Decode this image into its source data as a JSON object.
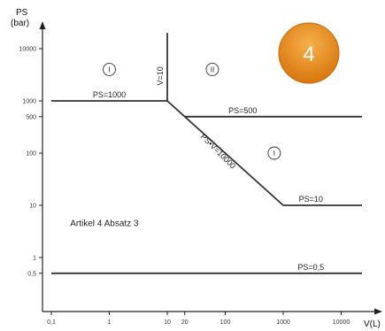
{
  "chart_data": {
    "type": "line",
    "x_scale": "log",
    "y_scale": "log",
    "xlabel": "V(L)",
    "ylabel": "PS",
    "ylabel_unit": "(bar)",
    "x_ticks": [
      {
        "value": 0.1,
        "label": "0,1"
      },
      {
        "value": 1,
        "label": "1"
      },
      {
        "value": 10,
        "label": "10"
      },
      {
        "value": 20,
        "label": "20"
      },
      {
        "value": 100,
        "label": "100"
      },
      {
        "value": 1000,
        "label": "1000"
      },
      {
        "value": 10000,
        "label": "10000"
      }
    ],
    "y_ticks": [
      {
        "value": 0.5,
        "label": "0,5"
      },
      {
        "value": 1,
        "label": "1"
      },
      {
        "value": 10,
        "label": "10"
      },
      {
        "value": 100,
        "label": "100"
      },
      {
        "value": 500,
        "label": "500"
      },
      {
        "value": 1000,
        "label": "1000"
      },
      {
        "value": 10000,
        "label": "10000"
      }
    ],
    "series": [
      {
        "name": "PS=1000",
        "points": [
          [
            0.1,
            1000
          ],
          [
            10,
            1000
          ]
        ]
      },
      {
        "name": "V=10",
        "points": [
          [
            10,
            1000
          ],
          [
            10,
            20000
          ]
        ]
      },
      {
        "name": "PS·V=10000",
        "points": [
          [
            10,
            1000
          ],
          [
            1000,
            10
          ]
        ]
      },
      {
        "name": "PS=500",
        "points": [
          [
            20,
            500
          ],
          [
            50000,
            500
          ]
        ]
      },
      {
        "name": "PS=10",
        "points": [
          [
            1000,
            10
          ],
          [
            50000,
            10
          ]
        ]
      },
      {
        "name": "PS=0,5",
        "points": [
          [
            0.1,
            0.5
          ],
          [
            50000,
            0.5
          ]
        ]
      }
    ],
    "annotations": [
      {
        "text": "PS=1000",
        "x": 1,
        "y": 1000
      },
      {
        "text": "V=10",
        "x": 10,
        "y": 3000
      },
      {
        "text": "PS=500",
        "x": 200,
        "y": 500
      },
      {
        "text": "PS•V=10000",
        "x": 70,
        "y": 100
      },
      {
        "text": "PS=10",
        "x": 3000,
        "y": 10
      },
      {
        "text": "PS=0,5",
        "x": 3000,
        "y": 0.5
      },
      {
        "text": "Artikel 4 Absatz 3",
        "x": 0.3,
        "y": 4
      }
    ],
    "regions": [
      {
        "label": "I",
        "x": 1,
        "y": 4000
      },
      {
        "label": "II",
        "x": 60,
        "y": 4000
      },
      {
        "label": "I",
        "x": 700,
        "y": 100
      }
    ],
    "badge": {
      "text": "4",
      "color": "#e8891c"
    },
    "line_color": "#333333"
  }
}
